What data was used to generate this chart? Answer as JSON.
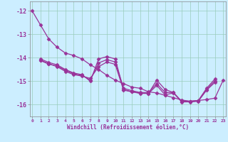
{
  "background_color": "#cceeff",
  "grid_color": "#99ccbb",
  "line_color": "#993399",
  "marker": "D",
  "markersize": 2.5,
  "linewidth": 0.9,
  "xlim": [
    -0.3,
    23.3
  ],
  "ylim": [
    -16.5,
    -11.6
  ],
  "yticks": [
    -16,
    -15,
    -14,
    -13,
    -12
  ],
  "xticks": [
    0,
    1,
    2,
    3,
    4,
    5,
    6,
    7,
    8,
    9,
    10,
    11,
    12,
    13,
    14,
    15,
    16,
    17,
    18,
    19,
    20,
    21,
    22,
    23
  ],
  "xlabel": "Windchill (Refroidissement éolien,°C)",
  "series": [
    {
      "x": [
        0,
        1,
        2,
        3,
        4,
        5,
        6,
        7,
        8,
        9,
        10,
        11,
        12,
        13,
        14,
        15,
        16,
        17,
        18,
        19,
        20,
        21,
        22,
        23
      ],
      "y": [
        -12.0,
        -12.6,
        -13.2,
        -13.55,
        -13.8,
        -13.9,
        -14.05,
        -14.3,
        -14.5,
        -14.75,
        -14.95,
        -15.1,
        -15.25,
        -15.3,
        -15.45,
        -15.5,
        -15.6,
        -15.7,
        -15.8,
        -15.85,
        -15.82,
        -15.78,
        -15.72,
        -14.95
      ]
    },
    {
      "x": [
        1,
        2,
        3,
        4,
        5,
        6,
        7,
        8,
        9,
        10,
        11,
        12,
        13,
        14,
        15,
        16,
        17,
        18,
        19,
        20,
        21,
        22
      ],
      "y": [
        -14.05,
        -14.2,
        -14.3,
        -14.5,
        -14.65,
        -14.72,
        -15.0,
        -14.05,
        -13.95,
        -14.05,
        -15.35,
        -15.45,
        -15.5,
        -15.52,
        -14.95,
        -15.35,
        -15.48,
        -15.85,
        -15.85,
        -15.82,
        -15.3,
        -14.9
      ]
    },
    {
      "x": [
        1,
        2,
        3,
        4,
        5,
        6,
        7,
        8,
        9,
        10,
        11,
        12,
        13,
        14,
        15,
        16,
        17,
        18,
        19,
        20,
        21,
        22
      ],
      "y": [
        -14.1,
        -14.25,
        -14.38,
        -14.58,
        -14.72,
        -14.78,
        -14.88,
        -14.38,
        -14.18,
        -14.28,
        -15.38,
        -15.45,
        -15.52,
        -15.52,
        -15.18,
        -15.58,
        -15.5,
        -15.88,
        -15.88,
        -15.85,
        -15.38,
        -15.05
      ]
    },
    {
      "x": [
        1,
        2,
        3,
        4,
        5,
        6,
        7,
        8,
        9,
        10,
        11,
        12,
        13,
        14,
        15,
        16,
        17,
        18,
        19,
        20,
        21,
        22
      ],
      "y": [
        -14.12,
        -14.27,
        -14.35,
        -14.53,
        -14.68,
        -14.75,
        -14.95,
        -14.22,
        -14.08,
        -14.18,
        -15.3,
        -15.4,
        -15.48,
        -15.48,
        -15.1,
        -15.48,
        -15.48,
        -15.87,
        -15.87,
        -15.84,
        -15.35,
        -14.98
      ]
    }
  ]
}
